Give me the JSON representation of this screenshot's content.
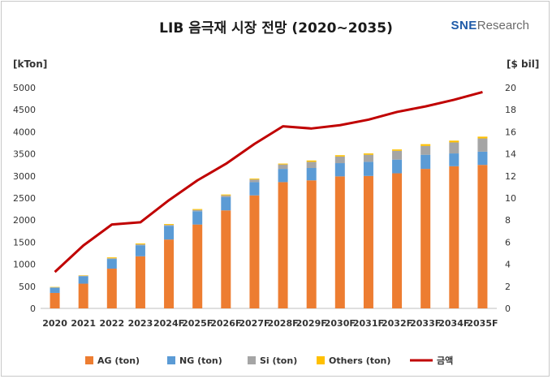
{
  "chart_data": {
    "type": "bar",
    "title": "LIB 음극재 시장 전망 (2020~2035)",
    "categories": [
      "2020",
      "2021",
      "2022",
      "2023",
      "2024F",
      "2025F",
      "2026F",
      "2027F",
      "2028F",
      "2029F",
      "2030F",
      "2031F",
      "2032F",
      "2033F",
      "2034F",
      "2035F"
    ],
    "series": [
      {
        "name": "AG (ton)",
        "kind": "bar",
        "axis": "left",
        "color": "#ed7d31",
        "values": [
          350,
          560,
          900,
          1180,
          1560,
          1900,
          2220,
          2560,
          2860,
          2900,
          2990,
          3000,
          3060,
          3160,
          3220,
          3250
        ]
      },
      {
        "name": "NG (ton)",
        "kind": "bar",
        "axis": "left",
        "color": "#5b9bd5",
        "values": [
          120,
          170,
          220,
          250,
          310,
          300,
          300,
          300,
          300,
          280,
          300,
          320,
          310,
          320,
          290,
          300
        ]
      },
      {
        "name": "Si (ton)",
        "kind": "bar",
        "axis": "left",
        "color": "#a5a5a5",
        "values": [
          5,
          10,
          15,
          20,
          20,
          30,
          40,
          60,
          100,
          140,
          150,
          160,
          200,
          200,
          250,
          300
        ]
      },
      {
        "name": "Others (ton)",
        "kind": "bar",
        "axis": "left",
        "color": "#ffc000",
        "values": [
          10,
          10,
          20,
          20,
          20,
          20,
          20,
          20,
          20,
          30,
          30,
          30,
          30,
          40,
          40,
          40
        ]
      },
      {
        "name": "금액",
        "kind": "line",
        "axis": "right",
        "color": "#c00000",
        "values": [
          3.3,
          5.7,
          7.6,
          7.8,
          9.8,
          11.6,
          13.1,
          14.9,
          16.5,
          16.3,
          16.6,
          17.1,
          17.8,
          18.3,
          18.9,
          19.6
        ]
      }
    ],
    "y_left": {
      "label": "[kTon]",
      "range": [
        0,
        5000
      ],
      "ticks": [
        "0",
        "500",
        "1000",
        "1500",
        "2000",
        "2500",
        "3000",
        "3500",
        "4000",
        "4500",
        "5000"
      ]
    },
    "y_right": {
      "label": "[$ bil]",
      "range": [
        0,
        20
      ],
      "ticks": [
        "0",
        "2",
        "4",
        "6",
        "8",
        "10",
        "12",
        "14",
        "16",
        "18",
        "20"
      ]
    },
    "grid": false,
    "legend_position": "bottom"
  },
  "logo": {
    "brand": "SNE",
    "suffix": "Research",
    "color": "#1f5ba8"
  }
}
